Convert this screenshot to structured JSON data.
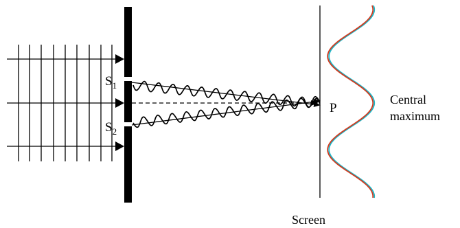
{
  "labels": {
    "slit1": "S",
    "slit1_sub": "1",
    "slit2": "S",
    "slit2_sub": "2",
    "point": "P",
    "central_line1": "Central",
    "central_line2": "maximum",
    "screen": "Screen"
  },
  "colors": {
    "ink": "#000000",
    "barrier": "#000000",
    "pattern_red": "#d23a1e",
    "pattern_cyan": "#19b7c9"
  }
}
